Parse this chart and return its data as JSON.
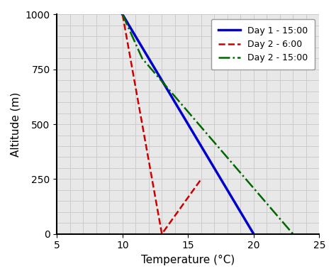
{
  "title": "",
  "xlabel": "Temperature (°C)",
  "ylabel": "Altitude (m)",
  "xlim": [
    5,
    25
  ],
  "ylim": [
    0,
    1000
  ],
  "xticks": [
    5,
    10,
    15,
    20,
    25
  ],
  "yticks": [
    0,
    250,
    500,
    750,
    1000
  ],
  "lines": [
    {
      "label": "Day 1 - 15:00",
      "color": "#0000cc",
      "linestyle": "-",
      "linewidth": 2.5,
      "x": [
        10,
        20
      ],
      "y": [
        1000,
        0
      ]
    },
    {
      "label": "Day 2 - 6:00",
      "color": "#cc0000",
      "linestyle": "--",
      "linewidth": 1.8,
      "x": [
        10,
        13,
        16
      ],
      "y": [
        1000,
        0,
        250
      ]
    },
    {
      "label": "Day 2 - 15:00",
      "color": "#006600",
      "linestyle": "-.",
      "linewidth": 1.8,
      "x": [
        10,
        11.5,
        23
      ],
      "y": [
        1000,
        800,
        0
      ]
    }
  ],
  "legend_loc": "upper right",
  "grid_color": "#cccccc",
  "grid_linewidth": 0.7,
  "background_color": "#e8e8e8",
  "fig_background": "#ffffff"
}
